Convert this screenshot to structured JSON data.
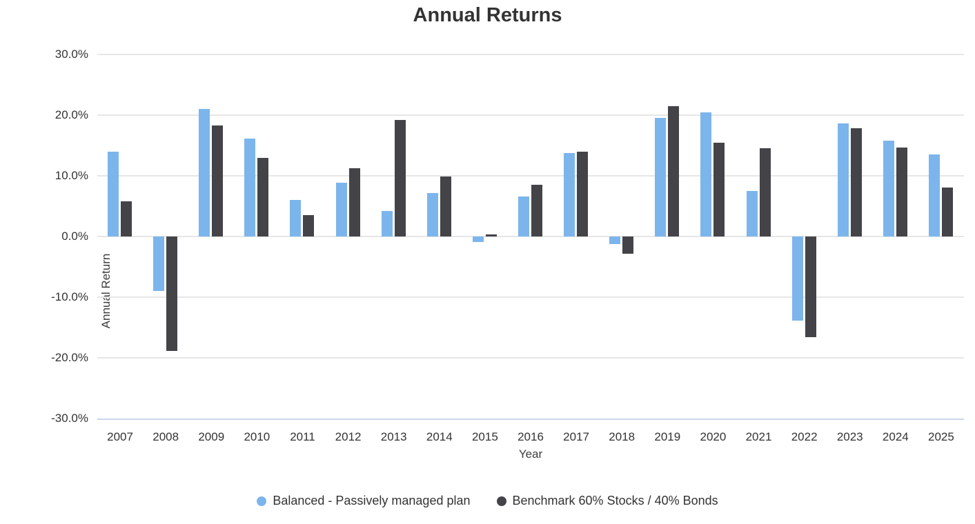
{
  "chart_data": {
    "type": "bar",
    "title": "Annual Returns",
    "xlabel": "Year",
    "ylabel": "Annual Return",
    "ylim": [
      -30,
      30
    ],
    "ytick_step": 10,
    "ytick_suffix": "%",
    "ytick_labels": [
      "30.0%",
      "20.0%",
      "10.0%",
      "0.0%",
      "-10.0%",
      "-20.0%",
      "-30.0%"
    ],
    "grid": true,
    "legend_position": "bottom",
    "categories": [
      "2007",
      "2008",
      "2009",
      "2010",
      "2011",
      "2012",
      "2013",
      "2014",
      "2015",
      "2016",
      "2017",
      "2018",
      "2019",
      "2020",
      "2021",
      "2022",
      "2023",
      "2024",
      "2025"
    ],
    "series": [
      {
        "name": "Balanced - Passively managed plan",
        "color": "#7cb5ec",
        "values": [
          14.0,
          -9.0,
          21.0,
          16.1,
          6.0,
          8.9,
          4.2,
          7.2,
          -0.9,
          6.6,
          13.7,
          -1.2,
          19.5,
          20.5,
          7.5,
          -13.9,
          18.6,
          15.8,
          13.5
        ]
      },
      {
        "name": "Benchmark 60% Stocks / 40% Bonds",
        "color": "#434348",
        "values": [
          5.8,
          -18.9,
          18.3,
          12.9,
          3.5,
          11.3,
          19.2,
          9.9,
          0.3,
          8.5,
          14.0,
          -2.8,
          21.5,
          15.5,
          14.6,
          -16.6,
          17.8,
          14.7,
          8.1
        ]
      }
    ]
  },
  "colors": {
    "gridline": "#e6e6e6",
    "axis_line": "#ccd6eb",
    "label_text": "#333333"
  }
}
